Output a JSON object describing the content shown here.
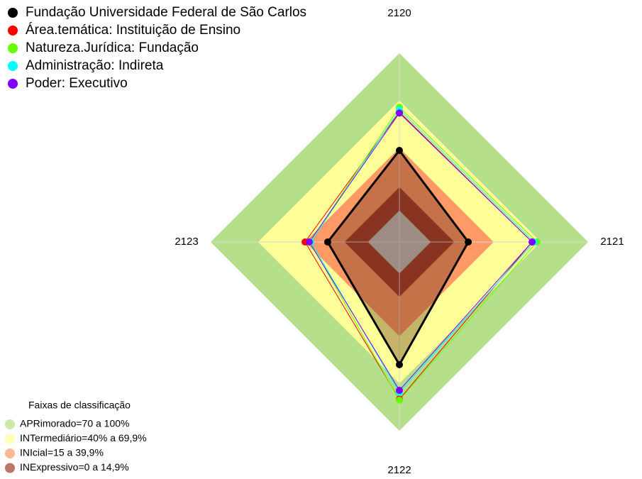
{
  "chart_data": {
    "type": "radar",
    "axes": [
      "2120",
      "2121",
      "2122",
      "2123"
    ],
    "rlim": [
      -20,
      100
    ],
    "series": [
      {
        "name": "Fundação Universidade Federal de São Carlos",
        "color": "#000000",
        "values": [
          38.2,
          23.8,
          58,
          25.6
        ]
      },
      {
        "name": "Área.temática: Instituição de Ensino",
        "color": "#ff0000",
        "values": [
          62.6,
          64.4,
          80,
          40
        ]
      },
      {
        "name": "Natureza.Jurídica: Fundação",
        "color": "#66ff00",
        "values": [
          65.7,
          67.5,
          80.6,
          36.8
        ]
      },
      {
        "name": "Administração: Indireta",
        "color": "#00ffff",
        "values": [
          64,
          65.7,
          75.6,
          36.4
        ]
      },
      {
        "name": "Poder: Executivo",
        "color": "#8000ff",
        "values": [
          62,
          64.4,
          74.3,
          37.3
        ]
      }
    ],
    "bands_title": "Faixas de classificação",
    "bands": [
      {
        "label": "APRimorado=70 a 100%",
        "range": [
          70,
          100
        ],
        "color": "#b5df8a"
      },
      {
        "label": "INTermediário=40% a 69,9%",
        "range": [
          40,
          69.9
        ],
        "color": "#ffff99"
      },
      {
        "label": "INIcial=15 a 39,9%",
        "range": [
          15,
          39.9
        ],
        "color": "#ff9966"
      },
      {
        "label": "INExpressivo=0 a 14,9%",
        "range": [
          0,
          14.9
        ],
        "color": "#a33a2a"
      }
    ]
  }
}
